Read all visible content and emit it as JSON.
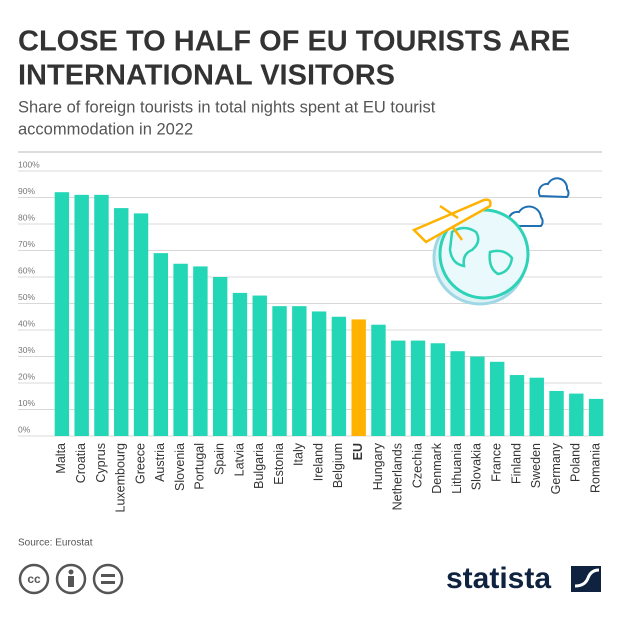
{
  "title_lines": [
    "CLOSE TO HALF OF EU TOURISTS ARE",
    "INTERNATIONAL VISITORS"
  ],
  "subtitle_lines": [
    "Share of foreign tourists in total nights spent at EU tourist",
    "accommodation in 2022"
  ],
  "chart_data": {
    "type": "bar",
    "categories": [
      "Malta",
      "Croatia",
      "Cyprus",
      "Luxembourg",
      "Greece",
      "Austria",
      "Slovenia",
      "Portugal",
      "Spain",
      "Latvia",
      "Bulgaria",
      "Estonia",
      "Italy",
      "Ireland",
      "Belgium",
      "EU",
      "Hungary",
      "Netherlands",
      "Czechia",
      "Denmark",
      "Lithuania",
      "Slovakia",
      "France",
      "Finland",
      "Sweden",
      "Germany",
      "Poland",
      "Romania"
    ],
    "values": [
      92,
      91,
      91,
      86,
      84,
      69,
      65,
      64,
      60,
      54,
      53,
      49,
      49,
      47,
      45,
      44,
      42,
      36,
      36,
      35,
      32,
      30,
      28,
      23,
      22,
      17,
      16,
      14
    ],
    "colors": [
      "#22d6b6",
      "#22d6b6",
      "#22d6b6",
      "#22d6b6",
      "#22d6b6",
      "#22d6b6",
      "#22d6b6",
      "#22d6b6",
      "#22d6b6",
      "#22d6b6",
      "#22d6b6",
      "#22d6b6",
      "#22d6b6",
      "#22d6b6",
      "#22d6b6",
      "#ffb300",
      "#22d6b6",
      "#22d6b6",
      "#22d6b6",
      "#22d6b6",
      "#22d6b6",
      "#22d6b6",
      "#22d6b6",
      "#22d6b6",
      "#22d6b6",
      "#22d6b6",
      "#22d6b6",
      "#22d6b6"
    ],
    "ylim": [
      0,
      100
    ],
    "yticks": [
      {
        "value": 0,
        "label": "0%"
      },
      {
        "value": 10,
        "label": "10%"
      },
      {
        "value": 20,
        "label": "20%"
      },
      {
        "value": 30,
        "label": "30%"
      },
      {
        "value": 40,
        "label": "40%"
      },
      {
        "value": 50,
        "label": "50%"
      },
      {
        "value": 60,
        "label": "60%"
      },
      {
        "value": 70,
        "label": "70%"
      },
      {
        "value": 80,
        "label": "80%"
      },
      {
        "value": 90,
        "label": "90%"
      },
      {
        "value": 100,
        "label": "100%"
      }
    ],
    "grid": true
  },
  "source": "Source: Eurostat",
  "license": "cc",
  "brand": "statista"
}
